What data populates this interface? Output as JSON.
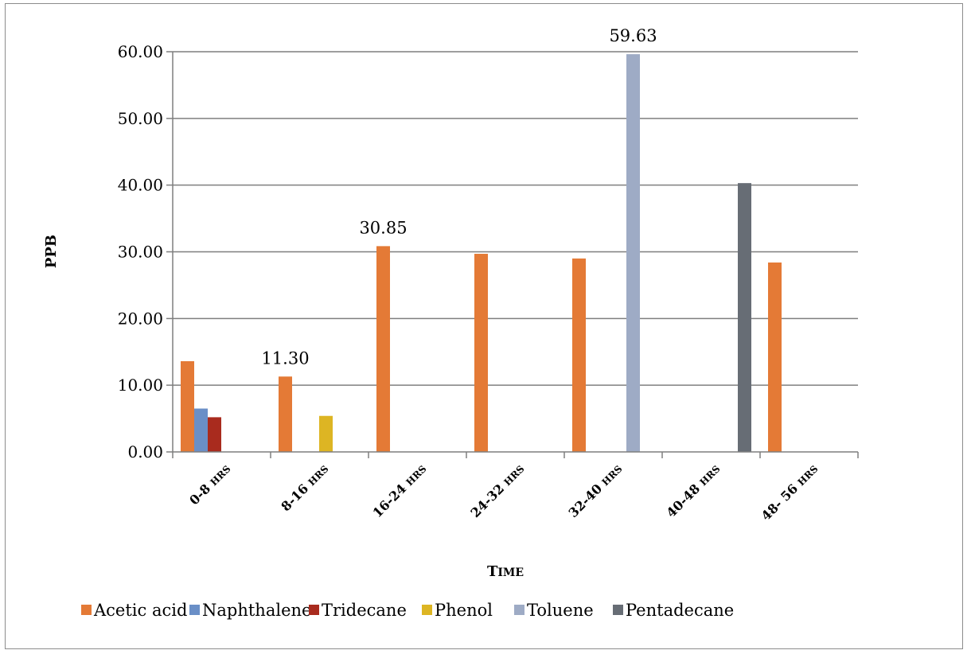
{
  "chart_data": {
    "type": "bar",
    "xlabel": "Time",
    "ylabel": "PPB",
    "ylim": [
      0,
      60
    ],
    "yticks": [
      "0.00",
      "10.00",
      "20.00",
      "30.00",
      "40.00",
      "50.00",
      "60.00"
    ],
    "categories": [
      "0-8 hrs",
      "8-16 hrs",
      "16-24 hrs",
      "24-32 hrs",
      "32-40 hrs",
      "40-48 hrs",
      "48- 56 hrs"
    ],
    "series": [
      {
        "name": "Acetic acid",
        "color": "#e47a36",
        "values": [
          13.6,
          11.3,
          30.85,
          29.7,
          29.0,
          null,
          28.4
        ]
      },
      {
        "name": "Naphthalene",
        "color": "#6a8fc7",
        "values": [
          6.5,
          null,
          null,
          null,
          null,
          null,
          null
        ]
      },
      {
        "name": "Tridecane",
        "color": "#a92b1e",
        "values": [
          5.2,
          null,
          null,
          null,
          null,
          null,
          null
        ]
      },
      {
        "name": "Phenol",
        "color": "#ddb523",
        "values": [
          null,
          5.4,
          null,
          null,
          null,
          null,
          null
        ]
      },
      {
        "name": "Toluene",
        "color": "#9eabc5",
        "values": [
          null,
          null,
          null,
          null,
          59.63,
          null,
          null
        ]
      },
      {
        "name": "Pentadecane",
        "color": "#676d75",
        "values": [
          null,
          null,
          null,
          null,
          null,
          40.3,
          null
        ]
      }
    ],
    "data_labels": [
      {
        "category_index": 1,
        "series_index": 0,
        "text": "11.30"
      },
      {
        "category_index": 2,
        "series_index": 0,
        "text": "30.85"
      },
      {
        "category_index": 4,
        "series_index": 4,
        "text": "59.63"
      }
    ],
    "grid": true,
    "legend_position": "bottom"
  }
}
